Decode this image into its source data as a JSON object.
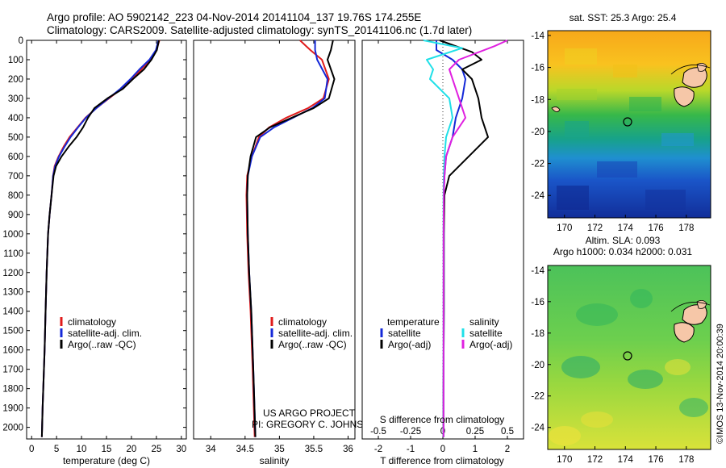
{
  "header": {
    "line1": "Argo profile: AO 5902142_223 04-Nov-2014 20141104_137 19.76S 174.255E",
    "line2": "Climatology: CARS2009. Satellite-adjusted climatology: synTS_20141106.nc (1.7d later)"
  },
  "credit": {
    "line1": "US ARGO PROJECT",
    "line2": "PI: GREGORY C. JOHNSON"
  },
  "side_stamp": "©IMOS 13-Nov-2014 20:00:39",
  "colors": {
    "climatology": "#e01b1b",
    "satellite": "#1428d8",
    "argo": "#000000",
    "satellite_salinity": "#20e0e8",
    "argo_salinity": "#e020e0"
  },
  "depth_axis": {
    "ticks": [
      0,
      100,
      200,
      300,
      400,
      500,
      600,
      700,
      800,
      900,
      1000,
      1100,
      1200,
      1300,
      1400,
      1500,
      1600,
      1700,
      1800,
      1900,
      2000
    ],
    "range": [
      0,
      2060
    ]
  },
  "chart_data": [
    {
      "type": "line",
      "panel": "temperature",
      "xlabel": "temperature (deg C)",
      "xlim": [
        -1,
        31
      ],
      "xticks": [
        0,
        5,
        10,
        15,
        20,
        25,
        30
      ],
      "ylim": [
        0,
        2060
      ],
      "legend": [
        "climatology",
        "satellite-adj. clim.",
        "Argo(..raw -QC)"
      ],
      "series": [
        {
          "name": "climatology",
          "color_key": "climatology",
          "x": [
            25.6,
            25.0,
            23.8,
            22.0,
            20.0,
            18.0,
            15.5,
            13.0,
            10.8,
            9.2,
            7.6,
            6.4,
            5.4,
            4.6,
            4.3,
            4.0,
            3.6,
            3.3,
            3.0,
            2.8,
            2.6,
            2.2,
            2.05
          ],
          "y": [
            0,
            50,
            100,
            150,
            200,
            250,
            300,
            350,
            400,
            450,
            500,
            550,
            600,
            650,
            700,
            800,
            900,
            1000,
            1200,
            1400,
            1600,
            1900,
            2050
          ]
        },
        {
          "name": "satellite-adj. clim.",
          "color_key": "satellite",
          "x": [
            25.4,
            24.9,
            23.6,
            21.6,
            19.8,
            17.8,
            15.4,
            13.0,
            10.9,
            9.3,
            7.8,
            6.6,
            5.5,
            4.7,
            4.3,
            4.0,
            3.6,
            3.3,
            3.0,
            2.8,
            2.6,
            2.2,
            2.05
          ],
          "y": [
            0,
            50,
            100,
            150,
            200,
            250,
            300,
            350,
            400,
            450,
            500,
            550,
            600,
            650,
            700,
            800,
            900,
            1000,
            1200,
            1400,
            1600,
            1900,
            2050
          ]
        },
        {
          "name": "Argo(..raw -QC)",
          "color_key": "argo",
          "x": [
            25.5,
            25.1,
            24.0,
            22.5,
            20.3,
            18.3,
            15.2,
            12.6,
            11.3,
            10.3,
            9.0,
            7.4,
            6.0,
            4.9,
            4.4,
            4.0,
            3.6,
            3.3,
            3.0,
            2.8,
            2.6,
            2.2,
            2.05
          ],
          "y": [
            0,
            50,
            100,
            150,
            200,
            250,
            300,
            350,
            400,
            450,
            500,
            550,
            600,
            650,
            700,
            800,
            900,
            1000,
            1200,
            1400,
            1600,
            1900,
            2050
          ]
        }
      ]
    },
    {
      "type": "line",
      "panel": "salinity",
      "xlabel": "salinity",
      "xlim": [
        33.75,
        36.1
      ],
      "xticks": [
        34,
        34.5,
        35,
        35.5,
        36
      ],
      "ylim": [
        0,
        2060
      ],
      "legend": [
        "climatology",
        "satellite-adj. clim.",
        "Argo(..raw -QC)"
      ],
      "series": [
        {
          "name": "climatology",
          "color_key": "climatology",
          "x": [
            35.3,
            35.45,
            35.62,
            35.72,
            35.64,
            35.42,
            35.1,
            34.85,
            34.7,
            34.6,
            34.53,
            34.52,
            34.53,
            34.55,
            34.58,
            34.61,
            34.64
          ],
          "y": [
            0,
            50,
            100,
            200,
            300,
            350,
            400,
            450,
            500,
            600,
            700,
            800,
            1000,
            1200,
            1400,
            1700,
            2050
          ]
        },
        {
          "name": "satellite-adj. clim.",
          "color_key": "satellite",
          "x": [
            35.52,
            35.52,
            35.55,
            35.7,
            35.66,
            35.48,
            35.2,
            34.92,
            34.72,
            34.6,
            34.54,
            34.53,
            34.54,
            34.56,
            34.59,
            34.62,
            34.65
          ],
          "y": [
            0,
            50,
            100,
            200,
            300,
            350,
            400,
            450,
            500,
            600,
            700,
            800,
            1000,
            1200,
            1400,
            1700,
            2050
          ]
        },
        {
          "name": "Argo(..raw -QC)",
          "color_key": "argo",
          "x": [
            35.78,
            35.75,
            35.7,
            35.8,
            35.72,
            35.5,
            35.18,
            34.86,
            34.66,
            34.58,
            34.54,
            34.53,
            34.54,
            34.56,
            34.59,
            34.62,
            34.65
          ],
          "y": [
            0,
            50,
            100,
            200,
            300,
            350,
            400,
            450,
            500,
            600,
            700,
            800,
            1000,
            1200,
            1400,
            1700,
            2050
          ]
        }
      ]
    },
    {
      "type": "line",
      "panel": "difference",
      "title_bottom": "S difference from climatology",
      "xlabel": "T difference from climatology",
      "xlim": [
        -2.5,
        2.5
      ],
      "xticks_T": [
        -2,
        -1,
        0,
        1,
        2
      ],
      "xticks_S_labels": [
        "-0.5",
        "-0.25",
        "0",
        "0.25",
        "0.5"
      ],
      "ylim": [
        0,
        2060
      ],
      "legend_headers": [
        "temperature",
        "salinity"
      ],
      "legend": [
        "satellite",
        "Argo(-adj)",
        "satellite",
        "Argo(-adj)"
      ],
      "series": [
        {
          "name": "temperature satellite",
          "color_key": "satellite",
          "x": [
            -0.2,
            -0.2,
            0.3,
            0.6,
            0.7,
            0.6,
            0.4,
            0.3,
            0.1,
            0.05,
            0.03,
            0.03,
            0.03,
            0.02,
            0.02
          ],
          "y": [
            0,
            50,
            100,
            150,
            200,
            300,
            400,
            500,
            600,
            700,
            800,
            1000,
            1400,
            1800,
            2050
          ]
        },
        {
          "name": "temperature Argo(-adj)",
          "color_key": "argo",
          "x": [
            -0.1,
            0.9,
            1.2,
            0.6,
            0.9,
            1.1,
            1.2,
            1.4,
            0.8,
            0.2,
            0.05,
            0.03,
            0.03,
            0.02,
            0.02
          ],
          "y": [
            0,
            60,
            100,
            150,
            200,
            300,
            400,
            500,
            600,
            700,
            800,
            1000,
            1400,
            1800,
            2050
          ]
        },
        {
          "name": "salinity satellite",
          "color_key": "satellite_salinity",
          "x": [
            -0.6,
            0.6,
            -0.5,
            -0.3,
            -0.4,
            0.2,
            0.3,
            0.1,
            0.05,
            0.03,
            0.02,
            0.02,
            0.02,
            0.02,
            0.02
          ],
          "y": [
            0,
            40,
            100,
            150,
            200,
            300,
            400,
            500,
            600,
            700,
            800,
            1000,
            1400,
            1800,
            2050
          ]
        },
        {
          "name": "salinity Argo(-adj)",
          "color_key": "argo_salinity",
          "x": [
            2.0,
            1.6,
            0.5,
            0.2,
            0.3,
            0.5,
            0.7,
            0.3,
            0.1,
            0.05,
            0.03,
            0.02,
            0.02,
            0.02,
            0.02
          ],
          "y": [
            0,
            30,
            100,
            150,
            200,
            300,
            400,
            500,
            600,
            700,
            800,
            1000,
            1400,
            1800,
            2050
          ]
        }
      ]
    },
    {
      "type": "heatmap",
      "panel": "map-sst",
      "title": "sat. SST: 25.3 Argo: 25.4",
      "xticks": [
        170,
        172,
        174,
        176,
        178
      ],
      "yticks": [
        -14,
        -16,
        -18,
        -20,
        -22,
        -24
      ],
      "xlim": [
        168.9,
        179.6
      ],
      "ylim": [
        -25.4,
        -13.7
      ],
      "marker": {
        "lon": 174.255,
        "lat": -19.76
      }
    },
    {
      "type": "heatmap",
      "panel": "map-sla",
      "title": "Altim. SLA: 0.093",
      "subtitle": "Argo h1000: 0.034 h2000: 0.031",
      "xticks": [
        170,
        172,
        174,
        176,
        178
      ],
      "yticks": [
        -14,
        -16,
        -18,
        -20,
        -22,
        -24
      ],
      "xlim": [
        168.9,
        179.6
      ],
      "ylim": [
        -25.4,
        -13.7
      ],
      "marker": {
        "lon": 174.255,
        "lat": -19.76
      }
    }
  ]
}
